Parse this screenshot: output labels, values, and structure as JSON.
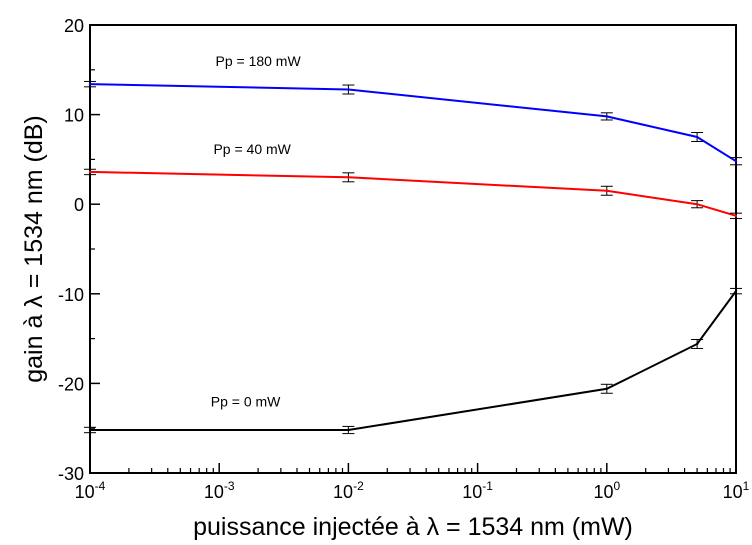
{
  "chart_data": {
    "type": "line",
    "xlabel": "puissance injectée à λ = 1534 nm (mW)",
    "ylabel": "gain à λ  = 1534 nm (dB)",
    "xscale": "log",
    "xlim": [
      0.0001,
      10
    ],
    "ylim": [
      -30,
      20
    ],
    "x_ticks": [
      {
        "base": "10",
        "exp": "-4",
        "value": 0.0001
      },
      {
        "base": "10",
        "exp": "-3",
        "value": 0.001
      },
      {
        "base": "10",
        "exp": "-2",
        "value": 0.01
      },
      {
        "base": "10",
        "exp": "-1",
        "value": 0.1
      },
      {
        "base": "10",
        "exp": "0",
        "value": 1
      },
      {
        "base": "10",
        "exp": "1",
        "value": 10
      }
    ],
    "y_ticks": [
      {
        "label": "-30",
        "value": -30
      },
      {
        "label": "-20",
        "value": -20
      },
      {
        "label": "-10",
        "value": -10
      },
      {
        "label": "0",
        "value": 0
      },
      {
        "label": "10",
        "value": 10
      },
      {
        "label": "20",
        "value": 20
      }
    ],
    "grid": false,
    "legend": "none",
    "series": [
      {
        "name": "Pp = 180 mW",
        "color": "#0000ff",
        "x": [
          0.0001,
          0.01,
          1,
          5,
          10
        ],
        "y": [
          13.4,
          12.8,
          9.8,
          7.5,
          4.8
        ],
        "err": [
          0.3,
          0.5,
          0.4,
          0.5,
          0.4
        ],
        "label_at": [
          0.002,
          15.4
        ]
      },
      {
        "name": "Pp = 40 mW",
        "color": "#ff0000",
        "x": [
          0.0001,
          0.01,
          1,
          5,
          10
        ],
        "y": [
          3.6,
          3.0,
          1.5,
          0.0,
          -1.3
        ],
        "err": [
          0.3,
          0.5,
          0.5,
          0.4,
          0.3
        ],
        "label_at": [
          0.0018,
          5.6
        ]
      },
      {
        "name": "Pp = 0 mW",
        "color": "#000000",
        "x": [
          0.0001,
          0.01,
          1,
          5,
          10
        ],
        "y": [
          -25.2,
          -25.2,
          -20.6,
          -15.6,
          -9.7
        ],
        "err": [
          0.3,
          0.4,
          0.5,
          0.5,
          0.3
        ],
        "label_at": [
          0.0016,
          -22.6
        ]
      }
    ]
  }
}
